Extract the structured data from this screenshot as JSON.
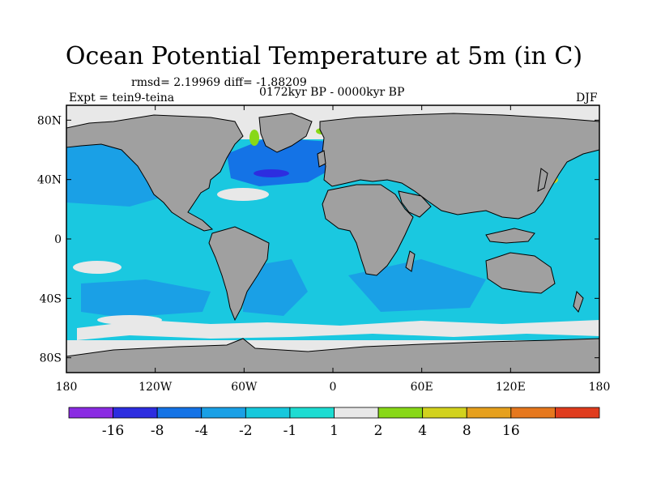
{
  "title": "Ocean Potential Temperature at 5m (in C)",
  "stats": "rmsd= 2.19969 diff= -1.88209",
  "period": "0172kyr BP - 0000kyr BP",
  "experiment": "Expt = tein9-teina",
  "season": "DJF",
  "map": {
    "projection": "cylindrical-equidistant",
    "lon_range": [
      -180,
      180
    ],
    "lat_range": [
      -90,
      90
    ],
    "lon_ticks": [
      {
        "value": -180,
        "label": "180"
      },
      {
        "value": -120,
        "label": "120W"
      },
      {
        "value": -60,
        "label": "60W"
      },
      {
        "value": 0,
        "label": "0"
      },
      {
        "value": 60,
        "label": "60E"
      },
      {
        "value": 120,
        "label": "120E"
      },
      {
        "value": 180,
        "label": "180"
      }
    ],
    "lat_ticks": [
      {
        "value": 80,
        "label": "80N"
      },
      {
        "value": 40,
        "label": "40N"
      },
      {
        "value": 0,
        "label": "0"
      },
      {
        "value": -40,
        "label": "40S"
      },
      {
        "value": -80,
        "label": "80S"
      }
    ]
  },
  "colorbar": {
    "colors": [
      "#8a2be2",
      "#2d2de0",
      "#1473e6",
      "#1aa0e6",
      "#16c8dc",
      "#1ddcd2",
      "#e8e8e8",
      "#88d818",
      "#d2d21e",
      "#e6a01e",
      "#e6781e",
      "#e03c1e"
    ],
    "labels": [
      {
        "after_box": 1,
        "text": "-16"
      },
      {
        "after_box": 2,
        "text": "-8"
      },
      {
        "after_box": 3,
        "text": "-4"
      },
      {
        "after_box": 4,
        "text": "-2"
      },
      {
        "after_box": 5,
        "text": "-1"
      },
      {
        "after_box": 6,
        "text": "1"
      },
      {
        "after_box": 7,
        "text": "2"
      },
      {
        "after_box": 8,
        "text": "4"
      },
      {
        "after_box": 9,
        "text": "8"
      },
      {
        "after_box": 10,
        "text": "16"
      }
    ]
  }
}
